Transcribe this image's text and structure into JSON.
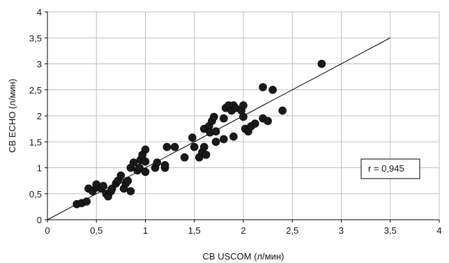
{
  "chart_data": {
    "type": "scatter",
    "xlabel": "CB USCOM (л/мин)",
    "ylabel": "CB ECHO (л/мин)",
    "xlim": [
      0,
      4
    ],
    "ylim": [
      0,
      4
    ],
    "x_ticks": [
      "0",
      "0,5",
      "1",
      "1,5",
      "2",
      "2,5",
      "3",
      "3,5",
      "4"
    ],
    "y_ticks": [
      "0",
      "0,5",
      "1",
      "1,5",
      "2",
      "2,5",
      "3",
      "3,5",
      "4"
    ],
    "grid": true,
    "annotation": "r = 0,945",
    "reference_line": {
      "x": [
        0,
        3.5
      ],
      "y": [
        0,
        3.5
      ]
    },
    "points": [
      {
        "x": 0.3,
        "y": 0.3
      },
      {
        "x": 0.35,
        "y": 0.32
      },
      {
        "x": 0.4,
        "y": 0.35
      },
      {
        "x": 0.42,
        "y": 0.6
      },
      {
        "x": 0.46,
        "y": 0.55
      },
      {
        "x": 0.5,
        "y": 0.62
      },
      {
        "x": 0.5,
        "y": 0.68
      },
      {
        "x": 0.55,
        "y": 0.6
      },
      {
        "x": 0.57,
        "y": 0.65
      },
      {
        "x": 0.6,
        "y": 0.5
      },
      {
        "x": 0.62,
        "y": 0.45
      },
      {
        "x": 0.65,
        "y": 0.55
      },
      {
        "x": 0.66,
        "y": 0.6
      },
      {
        "x": 0.7,
        "y": 0.7
      },
      {
        "x": 0.72,
        "y": 0.75
      },
      {
        "x": 0.75,
        "y": 0.85
      },
      {
        "x": 0.78,
        "y": 0.6
      },
      {
        "x": 0.8,
        "y": 0.7
      },
      {
        "x": 0.82,
        "y": 0.75
      },
      {
        "x": 0.85,
        "y": 1.0
      },
      {
        "x": 0.85,
        "y": 0.55
      },
      {
        "x": 0.88,
        "y": 1.1
      },
      {
        "x": 0.92,
        "y": 0.95
      },
      {
        "x": 0.94,
        "y": 1.0
      },
      {
        "x": 0.95,
        "y": 1.15
      },
      {
        "x": 0.97,
        "y": 1.25
      },
      {
        "x": 1.0,
        "y": 1.35
      },
      {
        "x": 1.0,
        "y": 0.92
      },
      {
        "x": 1.0,
        "y": 1.12
      },
      {
        "x": 1.1,
        "y": 1.0
      },
      {
        "x": 1.12,
        "y": 1.1
      },
      {
        "x": 1.2,
        "y": 1.0
      },
      {
        "x": 1.2,
        "y": 1.05
      },
      {
        "x": 1.22,
        "y": 1.4
      },
      {
        "x": 1.3,
        "y": 1.4
      },
      {
        "x": 1.4,
        "y": 1.2
      },
      {
        "x": 1.48,
        "y": 1.58
      },
      {
        "x": 1.5,
        "y": 1.4
      },
      {
        "x": 1.55,
        "y": 1.2
      },
      {
        "x": 1.58,
        "y": 1.3
      },
      {
        "x": 1.6,
        "y": 1.75
      },
      {
        "x": 1.6,
        "y": 1.4
      },
      {
        "x": 1.62,
        "y": 1.25
      },
      {
        "x": 1.65,
        "y": 1.8
      },
      {
        "x": 1.66,
        "y": 1.68
      },
      {
        "x": 1.68,
        "y": 1.9
      },
      {
        "x": 1.7,
        "y": 1.98
      },
      {
        "x": 1.72,
        "y": 1.5
      },
      {
        "x": 1.72,
        "y": 1.7
      },
      {
        "x": 1.8,
        "y": 1.55
      },
      {
        "x": 1.8,
        "y": 1.95
      },
      {
        "x": 1.82,
        "y": 2.15
      },
      {
        "x": 1.85,
        "y": 2.2
      },
      {
        "x": 1.88,
        "y": 2.1
      },
      {
        "x": 1.9,
        "y": 1.6
      },
      {
        "x": 1.9,
        "y": 2.2
      },
      {
        "x": 1.92,
        "y": 2.15
      },
      {
        "x": 1.98,
        "y": 2.1
      },
      {
        "x": 2.0,
        "y": 2.2
      },
      {
        "x": 2.0,
        "y": 1.98
      },
      {
        "x": 2.02,
        "y": 1.75
      },
      {
        "x": 2.05,
        "y": 1.7
      },
      {
        "x": 2.08,
        "y": 1.8
      },
      {
        "x": 2.12,
        "y": 1.85
      },
      {
        "x": 2.2,
        "y": 1.95
      },
      {
        "x": 2.2,
        "y": 2.55
      },
      {
        "x": 2.25,
        "y": 1.9
      },
      {
        "x": 2.3,
        "y": 2.5
      },
      {
        "x": 2.4,
        "y": 2.1
      },
      {
        "x": 2.8,
        "y": 3.0
      }
    ]
  }
}
